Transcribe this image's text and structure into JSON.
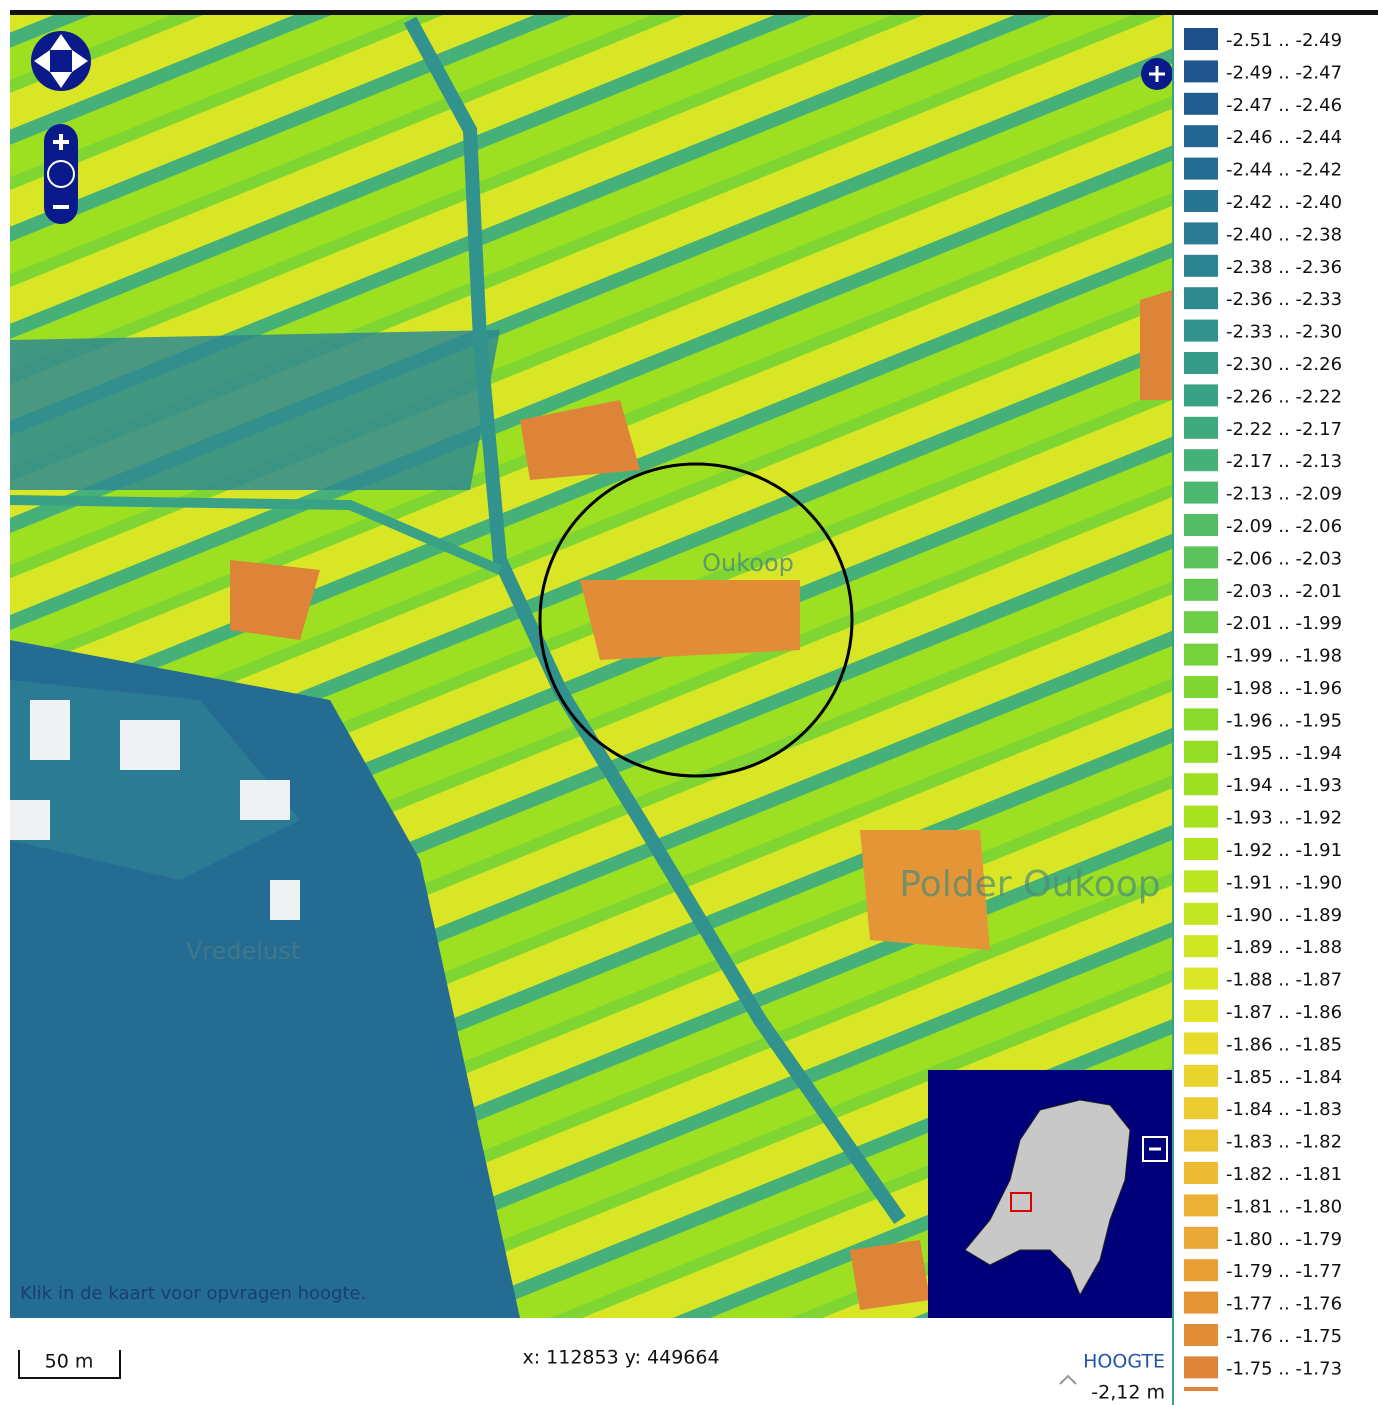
{
  "map": {
    "labels": [
      "Oukoop",
      "Polder Oukoop",
      "Vredelust"
    ],
    "hint": "Klik in de kaart voor opvragen hoogte.",
    "scale": "50 m",
    "coordinates": "x: 112853 y: 449664",
    "height_title": "HOOGTE",
    "height_value": "-2,12 m"
  },
  "legend": {
    "items": [
      {
        "label": "-2.51 .. -2.49",
        "color": "#1d4f8a"
      },
      {
        "label": "-2.49 .. -2.47",
        "color": "#1f568e"
      },
      {
        "label": "-2.47 .. -2.46",
        "color": "#215d90"
      },
      {
        "label": "-2.46 .. -2.44",
        "color": "#236592"
      },
      {
        "label": "-2.44 .. -2.42",
        "color": "#256c93"
      },
      {
        "label": "-2.42 .. -2.40",
        "color": "#277493"
      },
      {
        "label": "-2.40 .. -2.38",
        "color": "#2a7b93"
      },
      {
        "label": "-2.38 .. -2.36",
        "color": "#2c8392"
      },
      {
        "label": "-2.36 .. -2.33",
        "color": "#2f8a90"
      },
      {
        "label": "-2.33 .. -2.30",
        "color": "#32928d"
      },
      {
        "label": "-2.30 .. -2.26",
        "color": "#369a89"
      },
      {
        "label": "-2.26 .. -2.22",
        "color": "#3aa284"
      },
      {
        "label": "-2.22 .. -2.17",
        "color": "#3fa97e"
      },
      {
        "label": "-2.17 .. -2.13",
        "color": "#45b077"
      },
      {
        "label": "-2.13 .. -2.09",
        "color": "#4cb76f"
      },
      {
        "label": "-2.09 .. -2.06",
        "color": "#53bd66"
      },
      {
        "label": "-2.06 .. -2.03",
        "color": "#5bc35c"
      },
      {
        "label": "-2.03 .. -2.01",
        "color": "#63c852"
      },
      {
        "label": "-2.01 .. -1.99",
        "color": "#6ccd47"
      },
      {
        "label": "-1.99 .. -1.98",
        "color": "#75d23c"
      },
      {
        "label": "-1.98 .. -1.96",
        "color": "#7fd633"
      },
      {
        "label": "-1.96 .. -1.95",
        "color": "#89da2b"
      },
      {
        "label": "-1.95 .. -1.94",
        "color": "#93dd25"
      },
      {
        "label": "-1.94 .. -1.93",
        "color": "#9de021"
      },
      {
        "label": "-1.93 .. -1.92",
        "color": "#a7e21f"
      },
      {
        "label": "-1.92 .. -1.91",
        "color": "#b1e41f"
      },
      {
        "label": "-1.91 .. -1.90",
        "color": "#bbe520"
      },
      {
        "label": "-1.90 .. -1.89",
        "color": "#c5e622"
      },
      {
        "label": "-1.89 .. -1.88",
        "color": "#cfe624"
      },
      {
        "label": "-1.88 .. -1.87",
        "color": "#d9e626"
      },
      {
        "label": "-1.87 .. -1.86",
        "color": "#e1e22a"
      },
      {
        "label": "-1.86 .. -1.85",
        "color": "#e6dc2c"
      },
      {
        "label": "-1.85 .. -1.84",
        "color": "#e9d42e"
      },
      {
        "label": "-1.84 .. -1.83",
        "color": "#ebcc30"
      },
      {
        "label": "-1.83 .. -1.82",
        "color": "#ecc332"
      },
      {
        "label": "-1.82 .. -1.81",
        "color": "#ecba33"
      },
      {
        "label": "-1.81 .. -1.80",
        "color": "#ebb134"
      },
      {
        "label": "-1.80 .. -1.79",
        "color": "#e9a835"
      },
      {
        "label": "-1.79 .. -1.77",
        "color": "#e79f36"
      },
      {
        "label": "-1.77 .. -1.76",
        "color": "#e49637"
      },
      {
        "label": "-1.76 .. -1.75",
        "color": "#e18d38"
      },
      {
        "label": "-1.75 .. -1.73",
        "color": "#dd8439"
      }
    ]
  }
}
